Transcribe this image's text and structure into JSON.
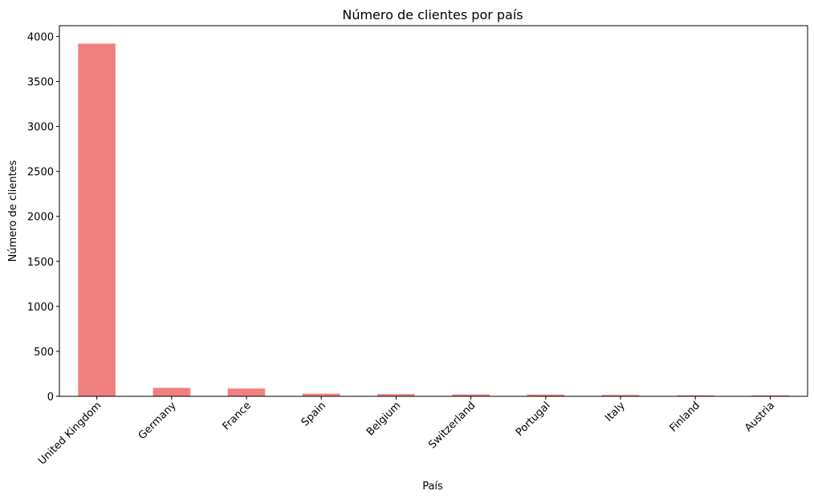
{
  "chart_data": {
    "type": "bar",
    "title": "Número de clientes por país",
    "xlabel": "País",
    "ylabel": "Número de clientes",
    "categories": [
      "United Kingdom",
      "Germany",
      "France",
      "Spain",
      "Belgium",
      "Switzerland",
      "Portugal",
      "Italy",
      "Finland",
      "Austria"
    ],
    "values": [
      3920,
      94,
      87,
      30,
      25,
      21,
      19,
      15,
      12,
      11
    ],
    "ylim": [
      0,
      4120
    ],
    "yticks": [
      0,
      500,
      1000,
      1500,
      2000,
      2500,
      3000,
      3500,
      4000
    ],
    "bar_color": "#f08080",
    "grid": false,
    "legend": "none"
  }
}
